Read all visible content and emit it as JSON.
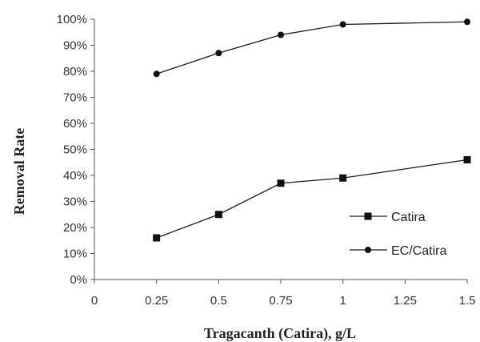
{
  "chart_data": {
    "type": "line",
    "title": "",
    "xlabel": "Tragacanth  (Catira),  g/L",
    "ylabel": "Removal  Rate",
    "xlim": [
      0,
      1.5
    ],
    "ylim": [
      0,
      100
    ],
    "x_ticks": [
      "0",
      "0.25",
      "0.5",
      "0.75",
      "1",
      "1.25",
      "1.5"
    ],
    "y_ticks": [
      "0%",
      "10%",
      "20%",
      "30%",
      "40%",
      "50%",
      "60%",
      "70%",
      "80%",
      "90%",
      "100%"
    ],
    "grid": false,
    "legend_position": "bottom-right",
    "series": [
      {
        "name": "Catira",
        "marker": "square",
        "color": "#111111",
        "x": [
          0.25,
          0.5,
          0.75,
          1,
          1.5
        ],
        "values": [
          16,
          25,
          37,
          39,
          46
        ]
      },
      {
        "name": "EC/Catira",
        "marker": "circle",
        "color": "#111111",
        "x": [
          0.25,
          0.5,
          0.75,
          1,
          1.5
        ],
        "values": [
          79,
          87,
          94,
          98,
          99
        ]
      }
    ]
  }
}
